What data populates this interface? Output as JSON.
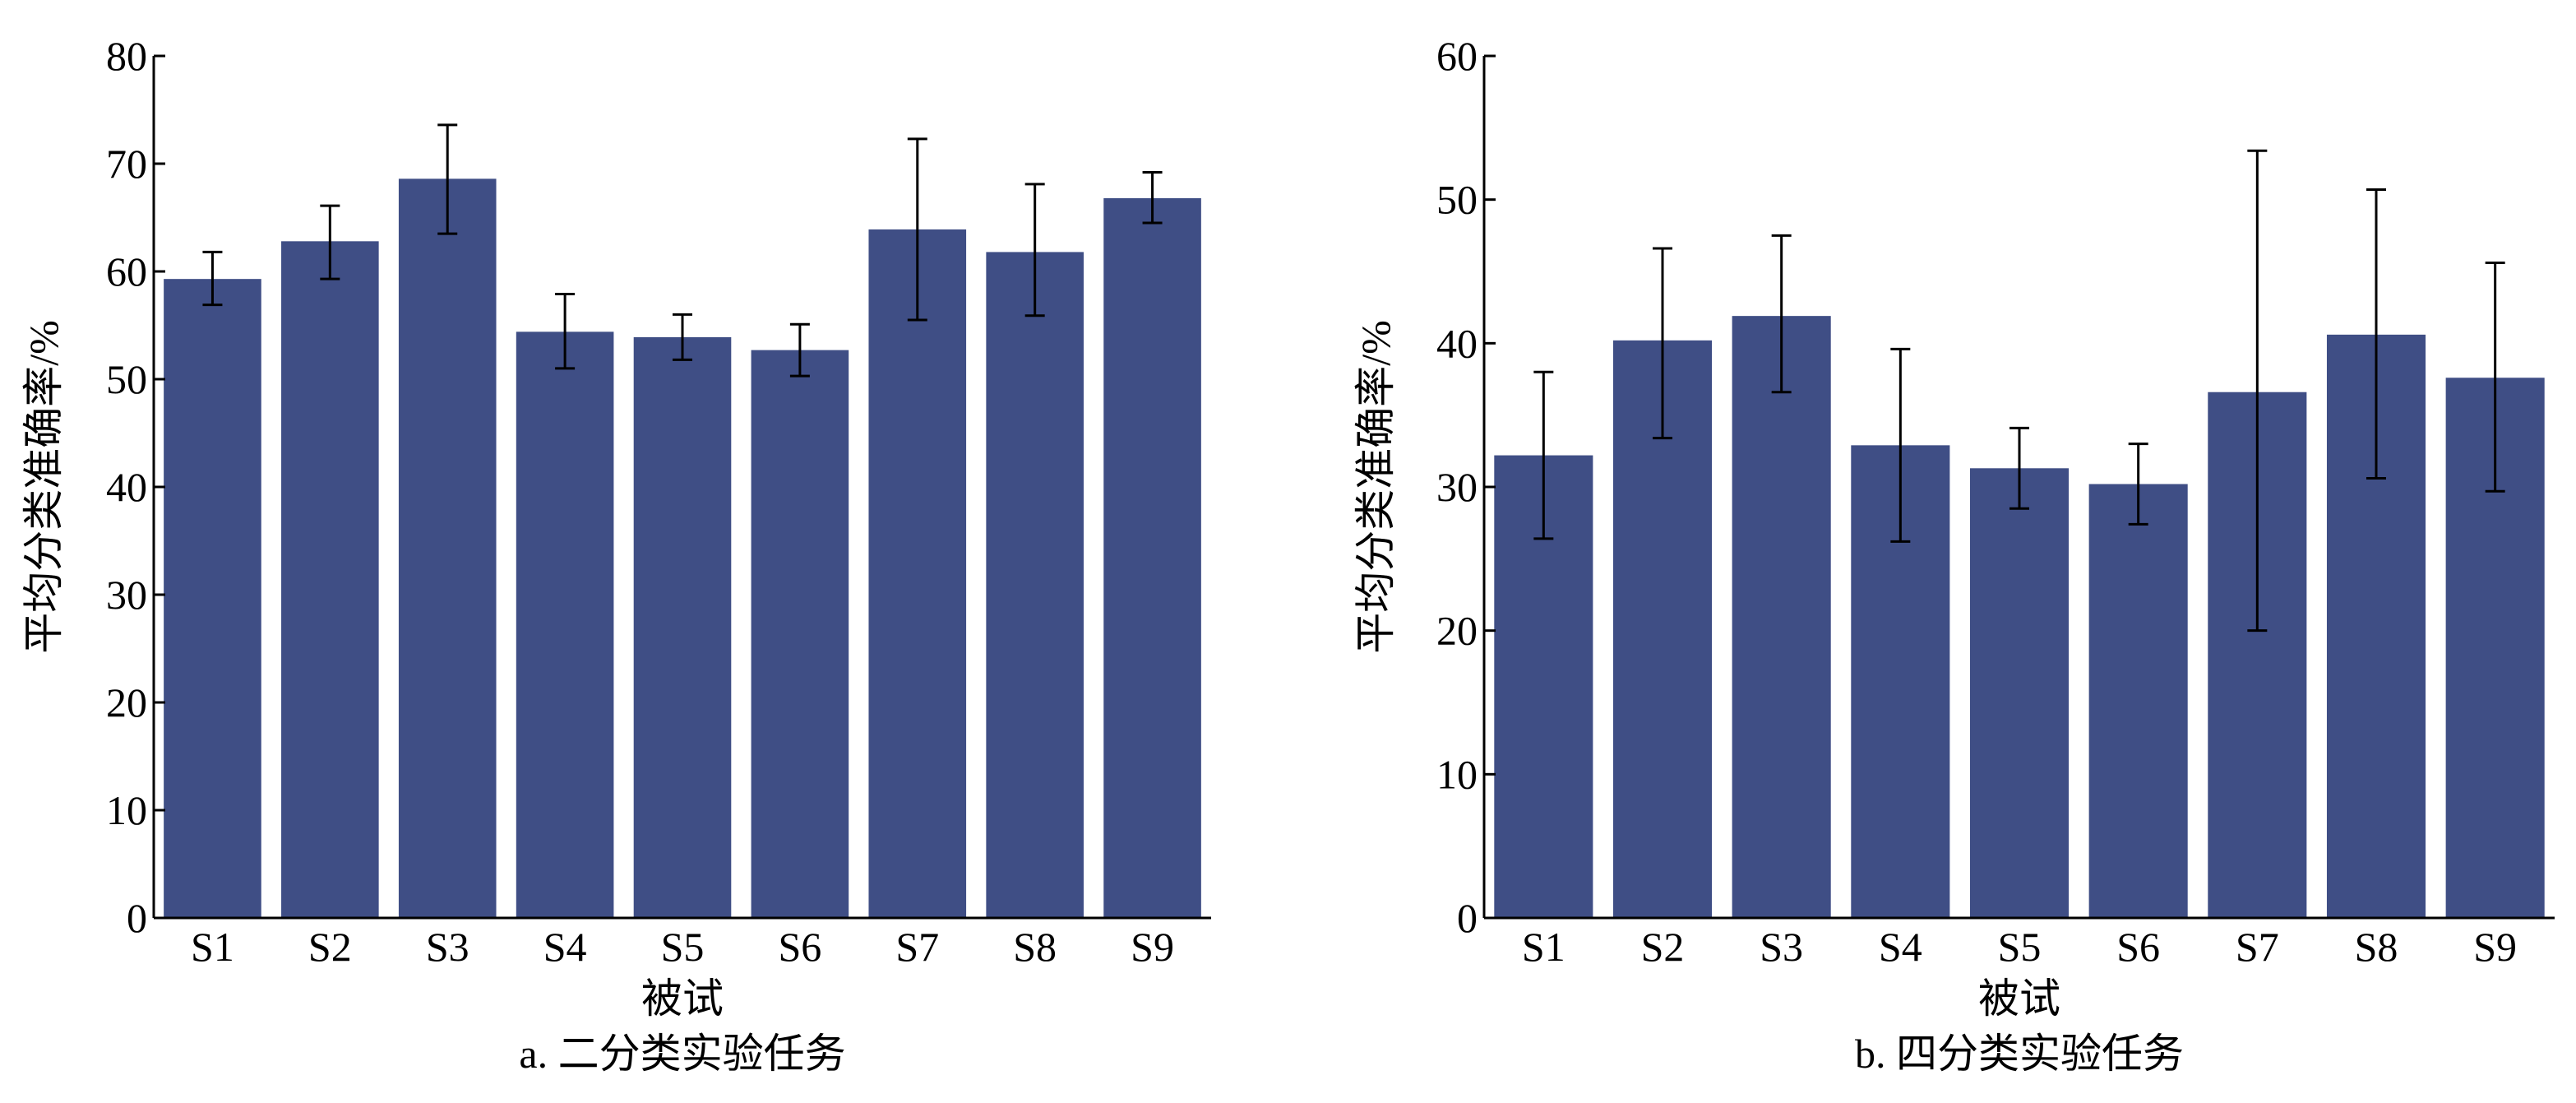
{
  "chart_data": [
    {
      "type": "bar",
      "caption": "a. 二分类实验任务",
      "xlabel": "被试",
      "ylabel": "平均分类准确率/%",
      "categories": [
        "S1",
        "S2",
        "S3",
        "S4",
        "S5",
        "S6",
        "S7",
        "S8",
        "S9"
      ],
      "values": [
        59.3,
        62.8,
        68.6,
        54.4,
        53.9,
        52.7,
        63.9,
        61.8,
        66.8
      ],
      "error_low": [
        56.9,
        59.3,
        63.5,
        51.0,
        51.8,
        50.3,
        55.5,
        55.9,
        64.5
      ],
      "error_high": [
        61.8,
        66.1,
        73.6,
        57.9,
        56.0,
        55.1,
        72.3,
        68.1,
        69.2
      ],
      "ylim": [
        0,
        80
      ],
      "yticks": [
        0,
        10,
        20,
        30,
        40,
        50,
        60,
        70,
        80
      ],
      "bar_color": "#3f4e85",
      "grid": false,
      "legend": "none"
    },
    {
      "type": "bar",
      "caption": "b. 四分类实验任务",
      "xlabel": "被试",
      "ylabel": "平均分类准确率/%",
      "categories": [
        "S1",
        "S2",
        "S3",
        "S4",
        "S5",
        "S6",
        "S7",
        "S8",
        "S9"
      ],
      "values": [
        32.2,
        40.2,
        41.9,
        32.9,
        31.3,
        30.2,
        36.6,
        40.6,
        37.6
      ],
      "error_low": [
        26.4,
        33.4,
        36.6,
        26.2,
        28.5,
        27.4,
        20.0,
        30.6,
        29.7
      ],
      "error_high": [
        38.0,
        46.6,
        47.5,
        39.6,
        34.1,
        33.0,
        53.4,
        50.7,
        45.6
      ],
      "ylim": [
        0,
        60
      ],
      "yticks": [
        0,
        10,
        20,
        30,
        40,
        50,
        60
      ],
      "bar_color": "#3f4e85",
      "grid": false,
      "legend": "none"
    }
  ]
}
